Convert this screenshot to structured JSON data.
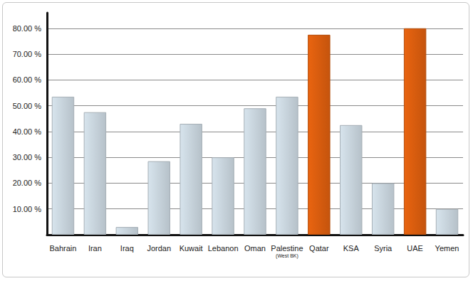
{
  "chart_data": {
    "type": "bar",
    "categories": [
      "Bahrain",
      "Iran",
      "Iraq",
      "Jordan",
      "Kuwait",
      "Lebanon",
      "Oman",
      "Palestine\n(West BK)",
      "Qatar",
      "KSA",
      "Syria",
      "UAE",
      "Yemen"
    ],
    "values": [
      53.5,
      47.5,
      3,
      28.5,
      43,
      30,
      49,
      53.5,
      77.5,
      42.5,
      20,
      80,
      10
    ],
    "colors": [
      "#cfdbe4",
      "#cfdbe4",
      "#cfdbe4",
      "#cfdbe4",
      "#cfdbe4",
      "#cfdbe4",
      "#cfdbe4",
      "#cfdbe4",
      "#e0600f",
      "#cfdbe4",
      "#cfdbe4",
      "#e0600f",
      "#cfdbe4"
    ],
    "ylim": [
      0,
      86
    ],
    "yticks": [
      {
        "value": 10,
        "label": "10.00 %"
      },
      {
        "value": 20,
        "label": "20.00 %"
      },
      {
        "value": 30,
        "label": "30.00 %"
      },
      {
        "value": 40,
        "label": "40.00 %"
      },
      {
        "value": 50,
        "label": "50.00 %"
      },
      {
        "value": 60,
        "label": "60.00 %"
      },
      {
        "value": 70,
        "label": "70.00 %"
      },
      {
        "value": 80,
        "label": "80.00 %"
      }
    ],
    "grid": true
  }
}
